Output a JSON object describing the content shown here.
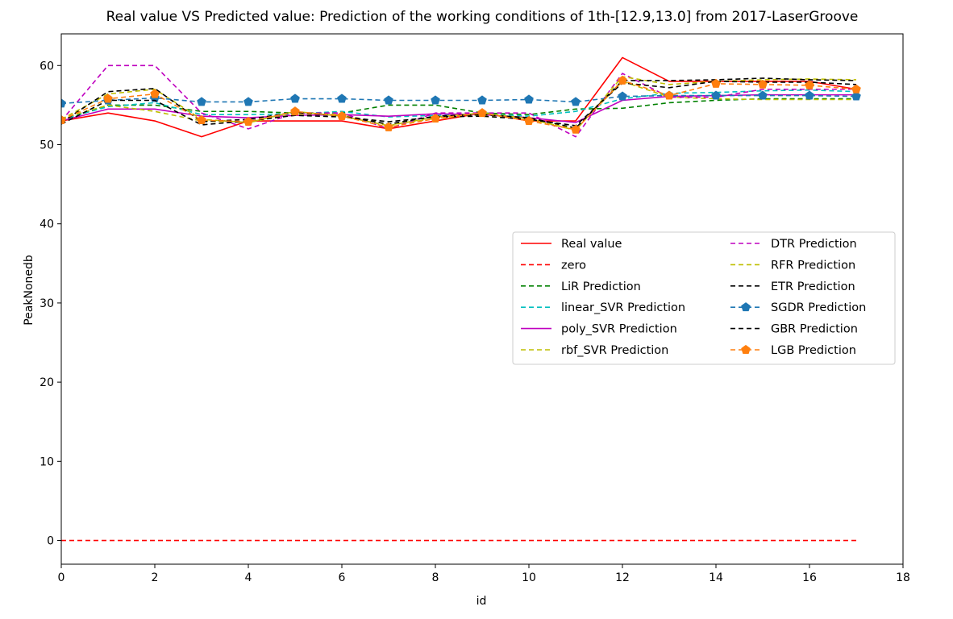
{
  "chart_data": {
    "type": "line",
    "title": "Real value VS Predicted value: Prediction of the working conditions of 1th-[12.9,13.0] from 2017-LaserGroove",
    "xlabel": "id",
    "ylabel": "PeakNonedb",
    "xlim": [
      0,
      18
    ],
    "ylim": [
      -3,
      64
    ],
    "xticks": [
      0,
      2,
      4,
      6,
      8,
      10,
      12,
      14,
      16,
      18
    ],
    "yticks": [
      0,
      10,
      20,
      30,
      40,
      50,
      60
    ],
    "grid": false,
    "legend_position": "center-right",
    "x": [
      0,
      1,
      2,
      3,
      4,
      5,
      6,
      7,
      8,
      9,
      10,
      11,
      12,
      13,
      14,
      15,
      16,
      17
    ],
    "series": [
      {
        "name": "Real value",
        "color": "#ff0000",
        "dash": "solid",
        "marker": "none",
        "values": [
          53.0,
          54.0,
          53.0,
          51.0,
          53.0,
          53.0,
          53.0,
          52.0,
          53.0,
          54.0,
          53.0,
          53.0,
          61.0,
          58.0,
          58.0,
          58.0,
          58.0,
          57.0
        ]
      },
      {
        "name": "zero",
        "color": "#ff0000",
        "dash": "dashed",
        "marker": "none",
        "values": [
          0,
          0,
          0,
          0,
          0,
          0,
          0,
          0,
          0,
          0,
          0,
          0,
          0,
          0,
          0,
          0,
          0,
          0
        ]
      },
      {
        "name": "LiR Prediction",
        "color": "#008000",
        "dash": "dashed",
        "marker": "none",
        "values": [
          53.0,
          55.0,
          55.0,
          54.2,
          54.2,
          54.0,
          54.0,
          55.0,
          55.0,
          54.0,
          53.8,
          54.5,
          54.6,
          55.3,
          55.6,
          55.8,
          55.8,
          55.8
        ]
      },
      {
        "name": "linear_SVR Prediction",
        "color": "#00bfbf",
        "dash": "dashed",
        "marker": "none",
        "values": [
          53.2,
          54.8,
          55.3,
          53.8,
          53.8,
          53.9,
          54.2,
          53.5,
          53.7,
          53.9,
          53.6,
          54.2,
          55.8,
          56.5,
          56.6,
          56.8,
          56.9,
          56.7
        ]
      },
      {
        "name": "poly_SVR Prediction",
        "color": "#bf00bf",
        "dash": "solid",
        "marker": "none",
        "values": [
          53.0,
          54.5,
          54.5,
          53.6,
          53.4,
          53.7,
          53.8,
          53.6,
          53.9,
          53.8,
          53.4,
          52.8,
          55.6,
          56.1,
          56.2,
          56.3,
          56.3,
          56.3
        ]
      },
      {
        "name": "rbf_SVR Prediction",
        "color": "#bfbf00",
        "dash": "dashed",
        "marker": "none",
        "values": [
          53.3,
          55.0,
          54.2,
          53.0,
          52.8,
          53.9,
          53.8,
          52.5,
          53.3,
          53.8,
          53.2,
          52.0,
          58.0,
          56.0,
          55.8,
          55.7,
          55.7,
          55.7
        ]
      },
      {
        "name": "DTR Prediction",
        "color": "#bf00bf",
        "dash": "dashed",
        "marker": "none",
        "values": [
          53.0,
          60.0,
          60.0,
          54.0,
          52.0,
          54.0,
          54.0,
          52.0,
          54.0,
          54.0,
          54.0,
          51.0,
          59.0,
          56.0,
          56.0,
          57.0,
          57.0,
          57.0
        ]
      },
      {
        "name": "RFR Prediction",
        "color": "#bfbf00",
        "dash": "dashed",
        "marker": "none",
        "values": [
          53.2,
          56.4,
          57.0,
          53.2,
          52.8,
          54.2,
          53.6,
          52.4,
          53.5,
          54.0,
          53.3,
          51.8,
          58.6,
          57.6,
          58.0,
          58.2,
          58.3,
          58.2
        ]
      },
      {
        "name": "ETR Prediction",
        "color": "#000000",
        "dash": "dashed",
        "marker": "none",
        "values": [
          52.8,
          56.7,
          57.1,
          52.9,
          53.2,
          54.1,
          53.6,
          52.6,
          53.6,
          53.8,
          53.4,
          52.1,
          58.1,
          58.1,
          58.2,
          58.4,
          58.2,
          58.1
        ]
      },
      {
        "name": "SGDR Prediction",
        "color": "#1f77b4",
        "dash": "dashed",
        "marker": "pentagon",
        "values": [
          55.2,
          55.6,
          55.9,
          55.4,
          55.4,
          55.8,
          55.8,
          55.6,
          55.6,
          55.6,
          55.7,
          55.4,
          56.1,
          56.2,
          56.2,
          56.2,
          56.2,
          56.1
        ]
      },
      {
        "name": "GBR Prediction",
        "color": "#000000",
        "dash": "dashed",
        "marker": "none",
        "values": [
          52.6,
          55.6,
          55.6,
          52.5,
          53.0,
          53.7,
          53.5,
          52.9,
          53.5,
          53.6,
          53.2,
          52.4,
          57.8,
          57.2,
          58.0,
          57.9,
          57.9,
          57.6
        ]
      },
      {
        "name": "LGB Prediction",
        "color": "#ff7f0e",
        "dash": "dashed",
        "marker": "pentagon",
        "values": [
          53.1,
          55.8,
          56.4,
          53.1,
          52.9,
          54.2,
          53.6,
          52.2,
          53.3,
          54.0,
          53.0,
          51.9,
          58.1,
          56.2,
          57.7,
          57.6,
          57.5,
          57.0
        ]
      }
    ]
  }
}
